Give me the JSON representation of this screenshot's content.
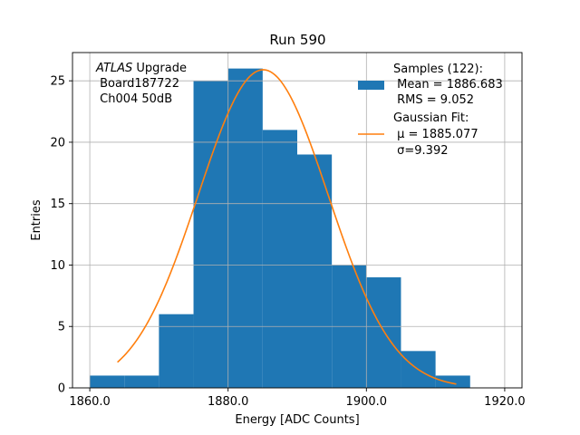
{
  "chart_data": {
    "type": "bar",
    "title": "Run 590",
    "xlabel": "Energy [ADC Counts]",
    "ylabel": "Entries",
    "xlim": [
      1857.5,
      1922.5
    ],
    "ylim": [
      0,
      27.3
    ],
    "x_ticks": [
      1860,
      1880,
      1900,
      1920
    ],
    "x_tick_labels": [
      "1860.0",
      "1880.0",
      "1900.0",
      "1920.0"
    ],
    "y_ticks": [
      0,
      5,
      10,
      15,
      20,
      25
    ],
    "y_tick_labels": [
      "0",
      "5",
      "10",
      "15",
      "20",
      "25"
    ],
    "grid": true,
    "histogram": {
      "name": "Samples (122):",
      "color": "#1f77b4",
      "bin_edges": [
        1860,
        1865,
        1870,
        1875,
        1880,
        1885,
        1890,
        1895,
        1900,
        1905,
        1910,
        1915
      ],
      "counts": [
        1,
        1,
        6,
        25,
        26,
        21,
        19,
        10,
        9,
        3,
        1
      ]
    },
    "fit": {
      "name": "Gaussian Fit:",
      "color": "#ff7f0e",
      "amplitude": 25.9,
      "mu": 1885.077,
      "sigma": 9.392,
      "x_range": [
        1864,
        1913
      ]
    },
    "annotation_lines": [
      "ATLAS Upgrade",
      " Board187722",
      " Ch004 50dB"
    ],
    "annotation_italic": "ATLAS",
    "annotation_rest": " Upgrade",
    "legend": {
      "position": "top-right",
      "samples_lines": [
        "Samples (122):",
        " Mean = 1886.683",
        " RMS = 9.052"
      ],
      "fit_lines": [
        "Gaussian Fit:",
        " μ = 1885.077",
        " σ=9.392"
      ]
    }
  }
}
